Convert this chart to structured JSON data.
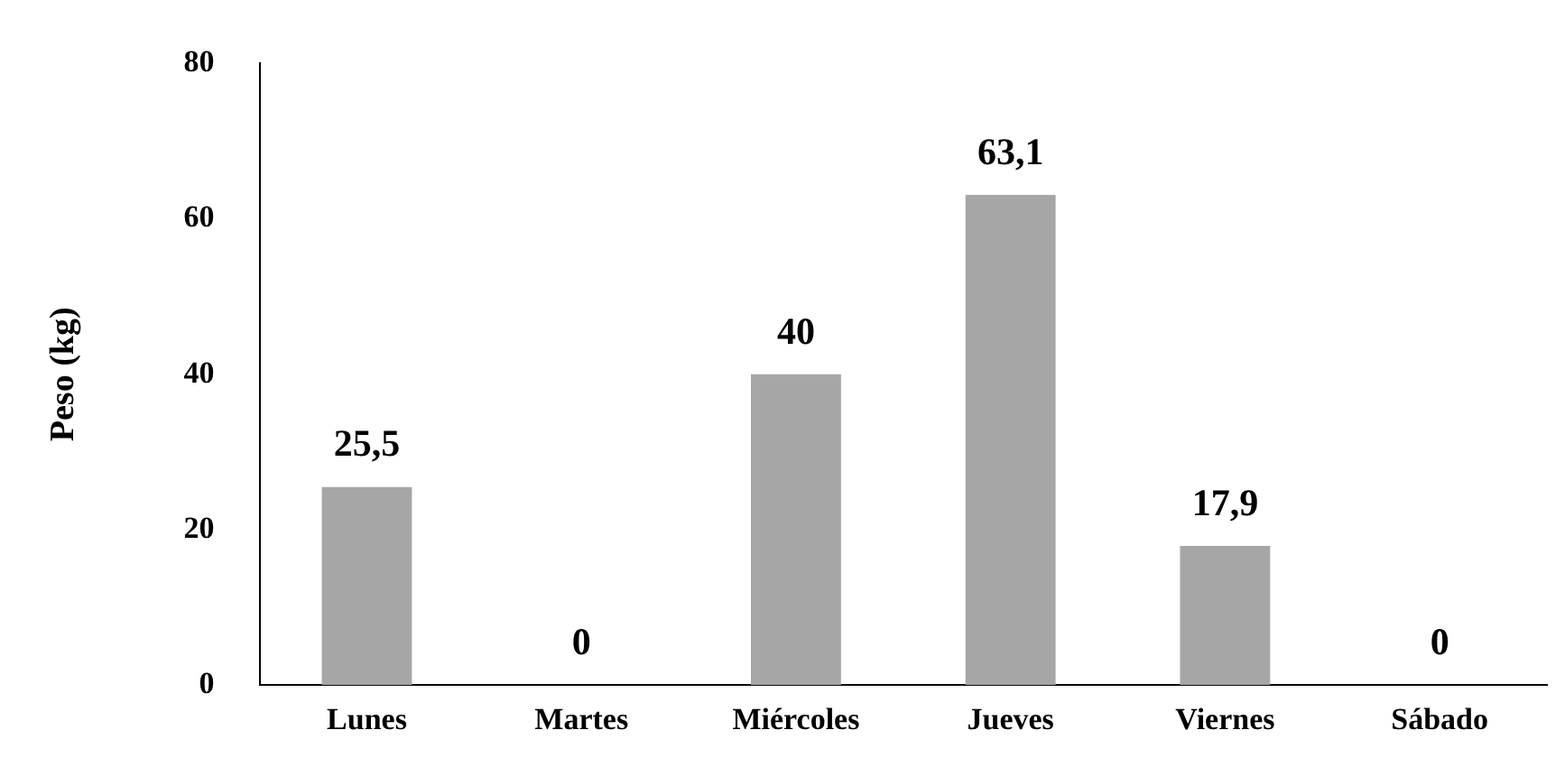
{
  "chart_data": {
    "type": "bar",
    "ylabel": "Peso (kg)",
    "categories": [
      "Lunes",
      "Martes",
      "Miércoles",
      "Jueves",
      "Viernes",
      "Sábado"
    ],
    "values": [
      25.5,
      0,
      40,
      63.1,
      17.9,
      0
    ],
    "value_labels": [
      "25,5",
      "0",
      "40",
      "63,1",
      "17,9",
      "0"
    ],
    "color": "#a6a6a6",
    "ylim": [
      0,
      80
    ],
    "yticks": [
      0,
      20,
      40,
      60,
      80
    ],
    "grid": false,
    "legend": false
  }
}
